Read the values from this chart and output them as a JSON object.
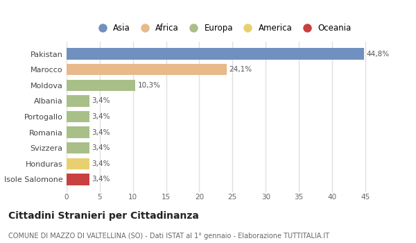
{
  "categories": [
    "Pakistan",
    "Marocco",
    "Moldova",
    "Albania",
    "Portogallo",
    "Romania",
    "Svizzera",
    "Honduras",
    "Isole Salomone"
  ],
  "values": [
    44.8,
    24.1,
    10.3,
    3.4,
    3.4,
    3.4,
    3.4,
    3.4,
    3.4
  ],
  "labels": [
    "44,8%",
    "24,1%",
    "10,3%",
    "3,4%",
    "3,4%",
    "3,4%",
    "3,4%",
    "3,4%",
    "3,4%"
  ],
  "colors": [
    "#7090bf",
    "#e8b98a",
    "#a8bf87",
    "#a8bf87",
    "#a8bf87",
    "#a8bf87",
    "#a8bf87",
    "#e8d070",
    "#c94040"
  ],
  "legend_labels": [
    "Asia",
    "Africa",
    "Europa",
    "America",
    "Oceania"
  ],
  "legend_colors": [
    "#7090bf",
    "#e8b98a",
    "#a8bf87",
    "#e8d070",
    "#c94040"
  ],
  "title": "Cittadini Stranieri per Cittadinanza",
  "subtitle": "COMUNE DI MAZZO DI VALTELLINA (SO) - Dati ISTAT al 1° gennaio - Elaborazione TUTTITALIA.IT",
  "xlim": [
    0,
    47
  ],
  "xticks": [
    0,
    5,
    10,
    15,
    20,
    25,
    30,
    35,
    40,
    45
  ],
  "bg_color": "#ffffff",
  "grid_color": "#e0e0e0",
  "bar_height": 0.72
}
